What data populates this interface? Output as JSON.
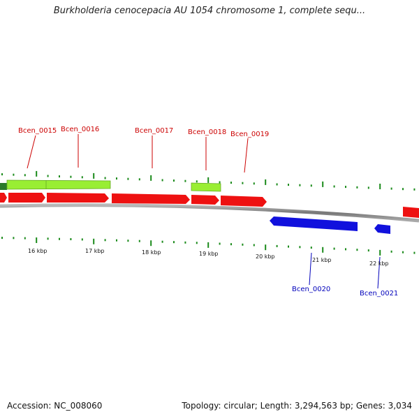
{
  "header": {
    "title": "Burkholderia cenocepacia AU 1054 chromosome 1, complete sequ..."
  },
  "footer": {
    "accession": "Accession: NC_008060",
    "stats": "Topology: circular; Length: 3,294,563 bp; Genes: 3,034"
  },
  "colors": {
    "forward_gene": "#ee1111",
    "reverse_gene": "#1111dd",
    "cds_feature": "#99ee33",
    "dark_feature": "#2a7a2a",
    "tick": "#1a8a1a",
    "backbone": "#888888",
    "forward_label": "#cc0000",
    "reverse_label": "#0000bb"
  },
  "genes": [
    {
      "id": "Bcen_0015",
      "label": "Bcen_0015",
      "strand": "+"
    },
    {
      "id": "Bcen_0016",
      "label": "Bcen_0016",
      "strand": "+"
    },
    {
      "id": "Bcen_0017",
      "label": "Bcen_0017",
      "strand": "+"
    },
    {
      "id": "Bcen_0018",
      "label": "Bcen_0018",
      "strand": "+"
    },
    {
      "id": "Bcen_0019",
      "label": "Bcen_0019",
      "strand": "+"
    },
    {
      "id": "Bcen_0020",
      "label": "Bcen_0020",
      "strand": "-"
    },
    {
      "id": "Bcen_0021",
      "label": "Bcen_0021",
      "strand": "-"
    }
  ],
  "scale_ticks": [
    "16 kbp",
    "17 kbp",
    "18 kbp",
    "19 kbp",
    "20 kbp",
    "21 kbp",
    "22 kbp"
  ]
}
